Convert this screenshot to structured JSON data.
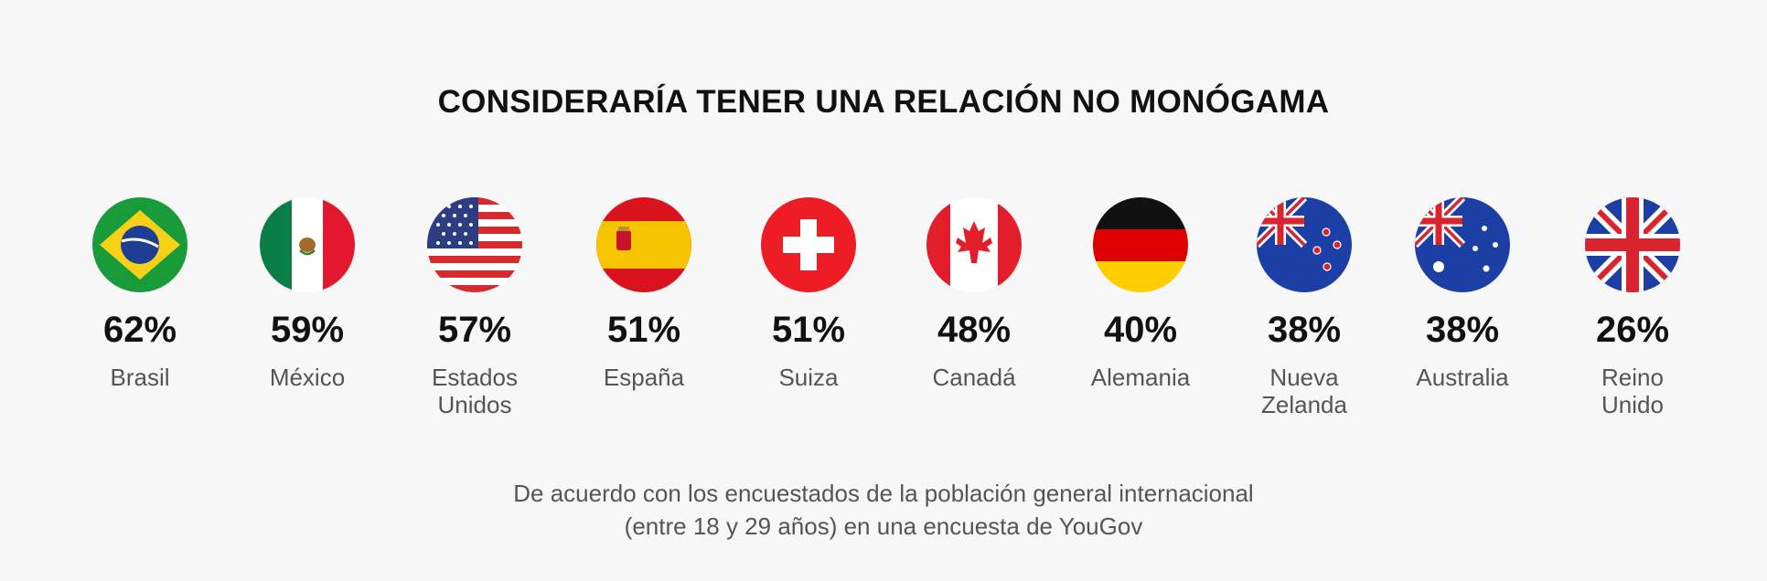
{
  "chart_data": {
    "type": "table",
    "title": "CONSIDERARÍA TENER UNA RELACIÓN NO MONÓGAMA",
    "categories": [
      "Brasil",
      "México",
      "Estados\nUnidos",
      "España",
      "Suiza",
      "Canadá",
      "Alemania",
      "Nueva\nZelanda",
      "Australia",
      "Reino\nUnido"
    ],
    "values": [
      62,
      59,
      57,
      51,
      51,
      48,
      40,
      38,
      38,
      26
    ],
    "value_labels": [
      "62%",
      "59%",
      "57%",
      "51%",
      "51%",
      "48%",
      "40%",
      "38%",
      "38%",
      "26%"
    ],
    "unit": "%",
    "flags": [
      "brazil-flag-icon",
      "mexico-flag-icon",
      "usa-flag-icon",
      "spain-flag-icon",
      "switzerland-flag-icon",
      "canada-flag-icon",
      "germany-flag-icon",
      "new-zealand-flag-icon",
      "australia-flag-icon",
      "uk-flag-icon"
    ]
  },
  "footnote": {
    "line1": "De acuerdo con los encuestados de la población general internacional",
    "line2": "(entre 18 y 29 años) en una encuesta de YouGov"
  },
  "colors": {
    "background": "#f7f7f7",
    "text": "#111111",
    "muted": "#555555"
  }
}
